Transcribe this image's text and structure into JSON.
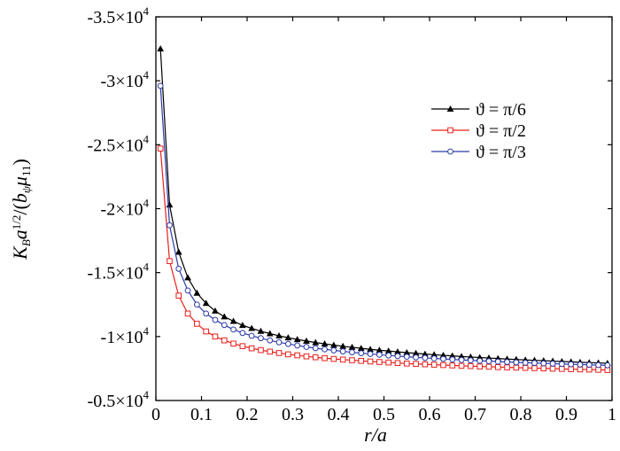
{
  "chart_data": {
    "type": "line",
    "xlabel": "r/a",
    "ylabel": "K_B a^{1/2}/(b_ψ μ_11)",
    "xlim": [
      0,
      1
    ],
    "ylim": [
      -35000,
      -5000
    ],
    "y_axis_reversed": true,
    "grid": false,
    "legend_position": "top-right",
    "x_ticks": [
      "0",
      "0.1",
      "0.2",
      "0.3",
      "0.4",
      "0.5",
      "0.6",
      "0.7",
      "0.8",
      "0.9",
      "1"
    ],
    "y_ticks": [
      {
        "value": -35000,
        "mantissa": "-3.5",
        "exp": "4"
      },
      {
        "value": -30000,
        "mantissa": "-3",
        "exp": "4"
      },
      {
        "value": -25000,
        "mantissa": "-2.5",
        "exp": "4"
      },
      {
        "value": -20000,
        "mantissa": "-2",
        "exp": "4"
      },
      {
        "value": -15000,
        "mantissa": "-1.5",
        "exp": "4"
      },
      {
        "value": -10000,
        "mantissa": "-1",
        "exp": "4"
      },
      {
        "value": -5000,
        "mantissa": "-0.5",
        "exp": "4"
      }
    ],
    "x": [
      0.01,
      0.03,
      0.05,
      0.07,
      0.09,
      0.11,
      0.13,
      0.15,
      0.17,
      0.19,
      0.21,
      0.23,
      0.25,
      0.27,
      0.29,
      0.31,
      0.33,
      0.35,
      0.37,
      0.39,
      0.41,
      0.43,
      0.45,
      0.47,
      0.49,
      0.51,
      0.53,
      0.55,
      0.57,
      0.59,
      0.61,
      0.63,
      0.65,
      0.67,
      0.69,
      0.71,
      0.73,
      0.75,
      0.77,
      0.79,
      0.81,
      0.83,
      0.85,
      0.87,
      0.89,
      0.91,
      0.93,
      0.95,
      0.97,
      0.99
    ],
    "series": [
      {
        "name": "ϑ = π/6",
        "color": "#000000",
        "marker": "triangle",
        "values": [
          -32500,
          -20300,
          -16600,
          -14600,
          -13400,
          -12600,
          -12000,
          -11550,
          -11200,
          -10880,
          -10640,
          -10420,
          -10230,
          -10060,
          -9910,
          -9770,
          -9650,
          -9530,
          -9430,
          -9330,
          -9240,
          -9160,
          -9080,
          -9000,
          -8930,
          -8870,
          -8800,
          -8740,
          -8690,
          -8630,
          -8580,
          -8530,
          -8490,
          -8440,
          -8400,
          -8360,
          -8320,
          -8280,
          -8240,
          -8210,
          -8170,
          -8140,
          -8110,
          -8080,
          -8050,
          -8020,
          -7990,
          -7960,
          -7940,
          -7910
        ]
      },
      {
        "name": "ϑ = π/2",
        "color": "#e8201c",
        "marker": "square",
        "values": [
          -24700,
          -15900,
          -13200,
          -11800,
          -11000,
          -10400,
          -10000,
          -9700,
          -9450,
          -9250,
          -9080,
          -8940,
          -8820,
          -8710,
          -8610,
          -8530,
          -8450,
          -8380,
          -8310,
          -8250,
          -8200,
          -8150,
          -8100,
          -8050,
          -8010,
          -7970,
          -7930,
          -7890,
          -7860,
          -7830,
          -7800,
          -7770,
          -7740,
          -7710,
          -7690,
          -7660,
          -7640,
          -7610,
          -7590,
          -7570,
          -7550,
          -7530,
          -7510,
          -7490,
          -7470,
          -7450,
          -7430,
          -7420,
          -7400,
          -7380
        ]
      },
      {
        "name": "ϑ = π/3",
        "color": "#2b3aa8",
        "marker": "circle",
        "values": [
          -29600,
          -18700,
          -15300,
          -13600,
          -12500,
          -11800,
          -11300,
          -10900,
          -10550,
          -10280,
          -10060,
          -9870,
          -9700,
          -9550,
          -9420,
          -9300,
          -9190,
          -9090,
          -9000,
          -8920,
          -8840,
          -8770,
          -8700,
          -8640,
          -8580,
          -8520,
          -8470,
          -8420,
          -8370,
          -8330,
          -8290,
          -8250,
          -8210,
          -8170,
          -8140,
          -8100,
          -8070,
          -8040,
          -8010,
          -7980,
          -7950,
          -7930,
          -7900,
          -7880,
          -7850,
          -7830,
          -7810,
          -7790,
          -7770,
          -7750
        ]
      }
    ]
  }
}
